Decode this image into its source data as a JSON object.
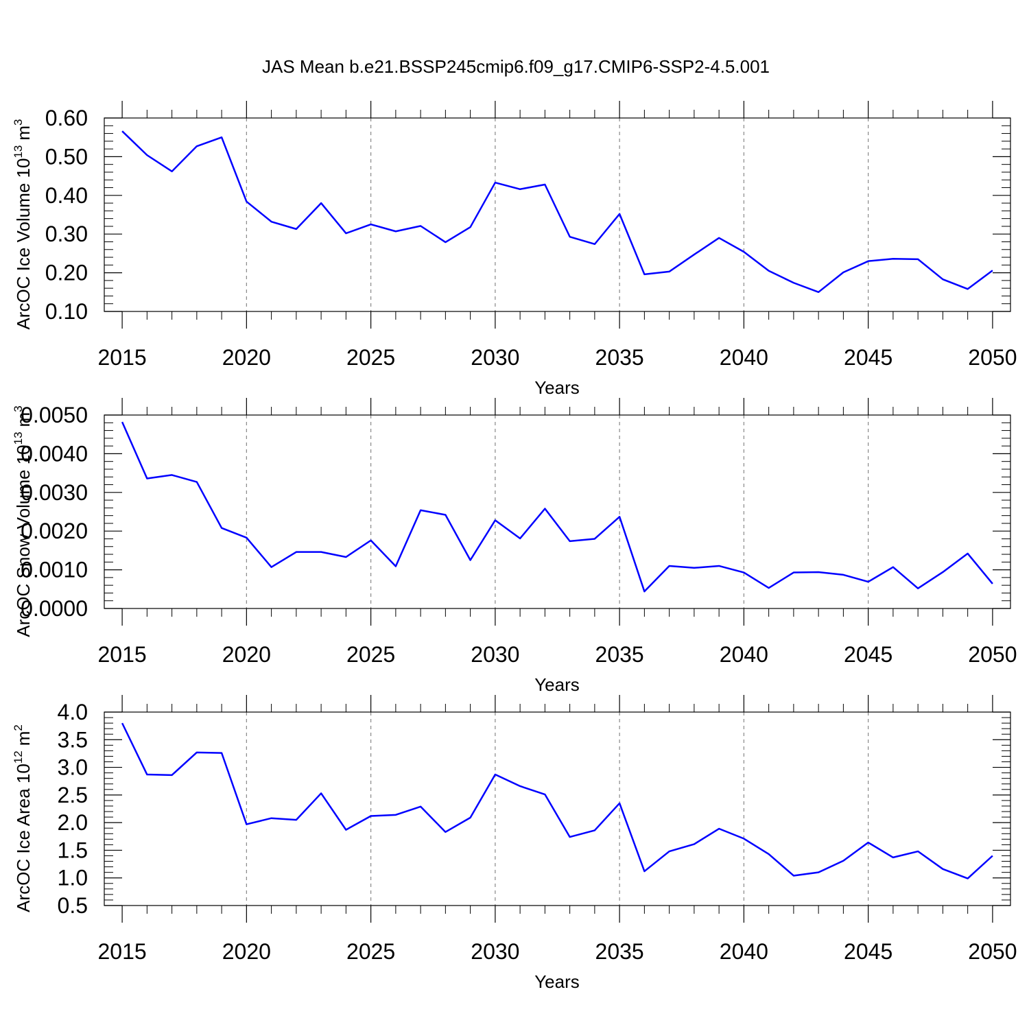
{
  "chart_data": [
    {
      "type": "line",
      "title": "JAS Mean b.e21.BSSP245cmip6.f09_g17.CMIP6-SSP2-4.5.001",
      "ylabel": {
        "text": "ArcOC Ice Volume 10",
        "exponent": "13",
        "unit": "m",
        "unit_exponent": "3"
      },
      "xlabel": "Years",
      "x": [
        2015,
        2016,
        2017,
        2018,
        2019,
        2020,
        2021,
        2022,
        2023,
        2024,
        2025,
        2026,
        2027,
        2028,
        2029,
        2030,
        2031,
        2032,
        2033,
        2034,
        2035,
        2036,
        2037,
        2038,
        2039,
        2040,
        2041,
        2042,
        2043,
        2044,
        2045,
        2046,
        2047,
        2048,
        2049,
        2050
      ],
      "series": [
        {
          "color": "#0000ff",
          "values": [
            0.566,
            0.504,
            0.462,
            0.527,
            0.55,
            0.384,
            0.332,
            0.313,
            0.38,
            0.302,
            0.325,
            0.307,
            0.321,
            0.279,
            0.318,
            0.433,
            0.416,
            0.428,
            0.293,
            0.274,
            0.352,
            0.196,
            0.203,
            0.247,
            0.29,
            0.254,
            0.205,
            0.174,
            0.15,
            0.201,
            0.23,
            0.236,
            0.235,
            0.183,
            0.158,
            0.206
          ]
        }
      ],
      "xlim": [
        2014.28,
        2050.72
      ],
      "xticks": [
        2015,
        2020,
        2025,
        2030,
        2035,
        2040,
        2045,
        2050
      ],
      "ylim": [
        0.1,
        0.6
      ],
      "yticks": [
        {
          "value": 0.1,
          "label": "0.10"
        },
        {
          "value": 0.2,
          "label": "0.20"
        },
        {
          "value": 0.3,
          "label": "0.30"
        },
        {
          "value": 0.4,
          "label": "0.40"
        },
        {
          "value": 0.5,
          "label": "0.50"
        },
        {
          "value": 0.6,
          "label": "0.60"
        }
      ],
      "grid": "x",
      "minor_ticks": true
    },
    {
      "type": "line",
      "ylabel": {
        "text": "ArcOC Snow Volume 10",
        "exponent": "13",
        "unit": "m",
        "unit_exponent": "3"
      },
      "xlabel": "Years",
      "x": [
        2015,
        2016,
        2017,
        2018,
        2019,
        2020,
        2021,
        2022,
        2023,
        2024,
        2025,
        2026,
        2027,
        2028,
        2029,
        2030,
        2031,
        2032,
        2033,
        2034,
        2035,
        2036,
        2037,
        2038,
        2039,
        2040,
        2041,
        2042,
        2043,
        2044,
        2045,
        2046,
        2047,
        2048,
        2049,
        2050
      ],
      "series": [
        {
          "color": "#0000ff",
          "values": [
            0.00482,
            0.00336,
            0.00345,
            0.00327,
            0.00208,
            0.00183,
            0.00107,
            0.00146,
            0.00146,
            0.00133,
            0.00176,
            0.00109,
            0.00254,
            0.00242,
            0.00125,
            0.00228,
            0.00181,
            0.00258,
            0.00174,
            0.0018,
            0.00237,
            0.00044,
            0.0011,
            0.00105,
            0.0011,
            0.00093,
            0.00053,
            0.00093,
            0.00094,
            0.00087,
            0.00069,
            0.00107,
            0.00052,
            0.00094,
            0.00142,
            0.00064
          ]
        }
      ],
      "xlim": [
        2014.28,
        2050.72
      ],
      "xticks": [
        2015,
        2020,
        2025,
        2030,
        2035,
        2040,
        2045,
        2050
      ],
      "ylim": [
        0,
        0.005
      ],
      "yticks": [
        {
          "value": 0,
          "label": "0.0000"
        },
        {
          "value": 0.001,
          "label": "0.0010"
        },
        {
          "value": 0.002,
          "label": "0.0020"
        },
        {
          "value": 0.003,
          "label": "0.0030"
        },
        {
          "value": 0.004,
          "label": "0.0040"
        },
        {
          "value": 0.005,
          "label": "0.0050"
        }
      ],
      "grid": "x",
      "minor_ticks": true
    },
    {
      "type": "line",
      "ylabel": {
        "text": "ArcOC Ice Area 10",
        "exponent": "12",
        "unit": "m",
        "unit_exponent": "2"
      },
      "xlabel": "Years",
      "x": [
        2015,
        2016,
        2017,
        2018,
        2019,
        2020,
        2021,
        2022,
        2023,
        2024,
        2025,
        2026,
        2027,
        2028,
        2029,
        2030,
        2031,
        2032,
        2033,
        2034,
        2035,
        2036,
        2037,
        2038,
        2039,
        2040,
        2041,
        2042,
        2043,
        2044,
        2045,
        2046,
        2047,
        2048,
        2049,
        2050
      ],
      "series": [
        {
          "color": "#0000ff",
          "values": [
            3.8,
            2.87,
            2.86,
            3.27,
            3.26,
            1.97,
            2.08,
            2.05,
            2.53,
            1.87,
            2.12,
            2.14,
            2.29,
            1.83,
            2.09,
            2.87,
            2.66,
            2.51,
            1.74,
            1.86,
            2.35,
            1.12,
            1.48,
            1.61,
            1.89,
            1.71,
            1.43,
            1.04,
            1.1,
            1.31,
            1.64,
            1.37,
            1.48,
            1.16,
            0.99,
            1.4
          ]
        }
      ],
      "xlim": [
        2014.28,
        2050.72
      ],
      "xticks": [
        2015,
        2020,
        2025,
        2030,
        2035,
        2040,
        2045,
        2050
      ],
      "ylim": [
        0.5,
        4.0
      ],
      "yticks": [
        0.5,
        {
          "value": 1,
          "label": "1.0"
        },
        1.5,
        {
          "value": 2,
          "label": "2.0"
        },
        2.5,
        {
          "value": 3,
          "label": "3.0"
        },
        3.5,
        {
          "value": 4,
          "label": "4.0"
        }
      ],
      "grid": "x",
      "minor_ticks": true
    }
  ]
}
